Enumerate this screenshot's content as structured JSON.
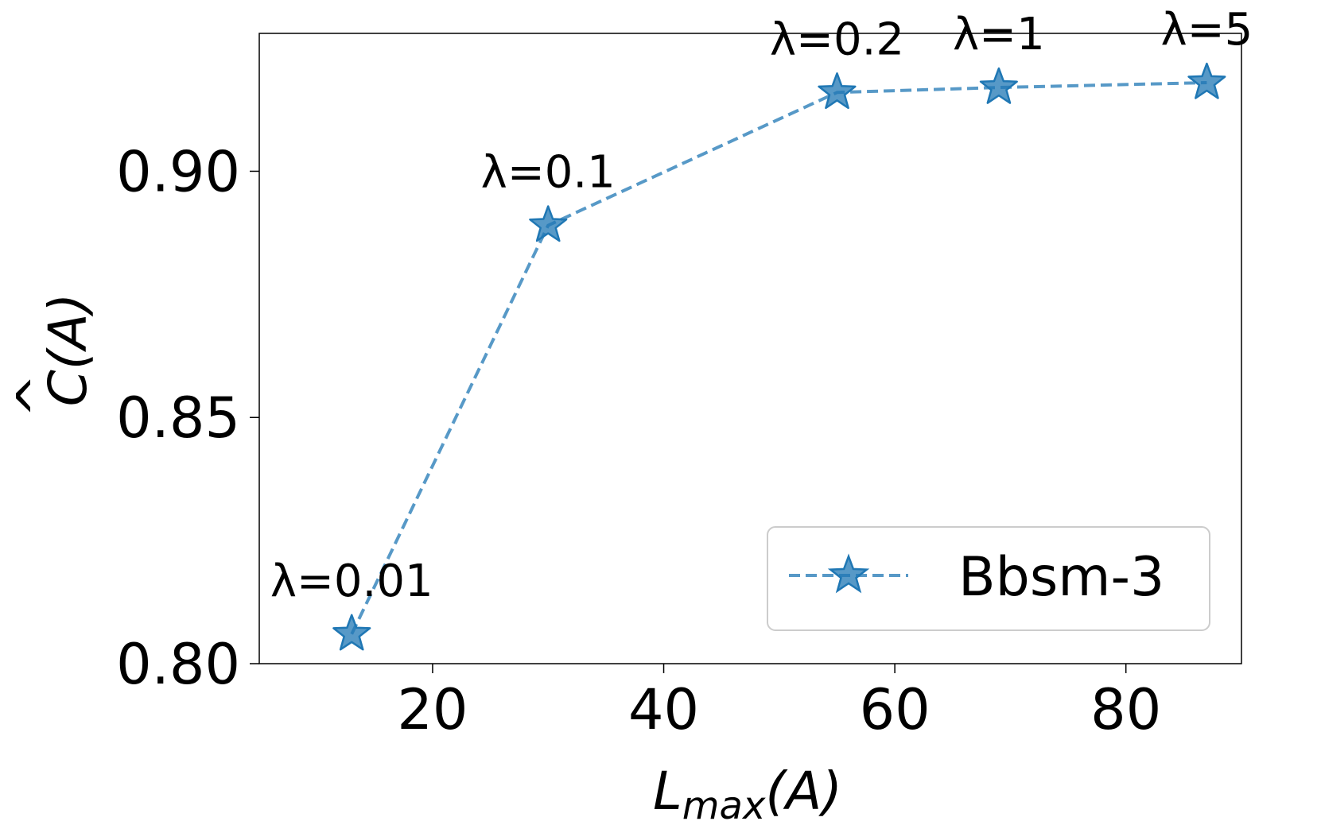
{
  "chart_data": {
    "type": "line",
    "xlabel": "L_max(A)",
    "xlabel_main": "L",
    "xlabel_sub": "max",
    "xlabel_rest": "(A)",
    "ylabel": "Ĉ(A)",
    "ylabel_base": "C",
    "ylabel_hat": "^",
    "ylabel_rest": "(A)",
    "xlim": [
      5,
      90
    ],
    "ylim": [
      0.8,
      0.928
    ],
    "xticks": [
      20,
      40,
      60,
      80
    ],
    "xtick_labels": [
      "20",
      "40",
      "60",
      "80"
    ],
    "yticks": [
      0.8,
      0.85,
      0.9
    ],
    "ytick_labels": [
      "0.80",
      "0.85",
      "0.90"
    ],
    "grid": false,
    "legend_position": "lower-right",
    "series": [
      {
        "name": "Bbsm-3",
        "color": "#1f77b4",
        "marker": "star",
        "linestyle": "dashed",
        "x": [
          13,
          30,
          55,
          69,
          87
        ],
        "y": [
          0.806,
          0.889,
          0.916,
          0.917,
          0.918
        ],
        "annotations": [
          "λ=0.01",
          "λ=0.1",
          "λ=0.2",
          "λ=1",
          "λ=5"
        ]
      }
    ]
  }
}
